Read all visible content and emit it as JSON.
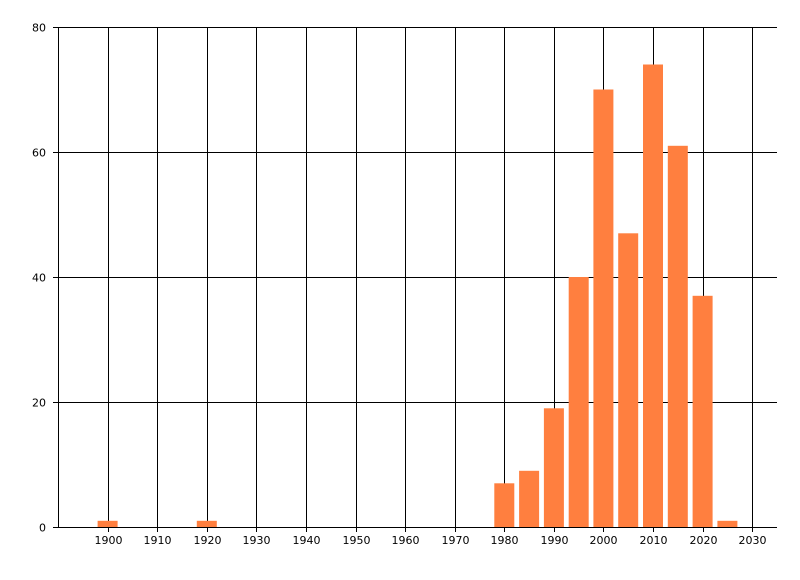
{
  "chart_data": {
    "type": "bar",
    "title": "",
    "xlabel": "",
    "ylabel": "",
    "x": [
      1900,
      1920,
      1980,
      1985,
      1990,
      1995,
      2000,
      2005,
      2010,
      2015,
      2020,
      2025
    ],
    "values": [
      1,
      1,
      7,
      9,
      19,
      40,
      70,
      47,
      74,
      61,
      37,
      1
    ],
    "xlim": [
      1890,
      2035
    ],
    "ylim": [
      0,
      80
    ],
    "xticks": [
      1900,
      1910,
      1920,
      1930,
      1940,
      1950,
      1960,
      1970,
      1980,
      1990,
      2000,
      2010,
      2020,
      2030
    ],
    "xtick_labels": [
      "1900",
      "1910",
      "1920",
      "1930",
      "1940",
      "1950",
      "1960",
      "1970",
      "1980",
      "1990",
      "2000",
      "2010",
      "2020",
      "2030"
    ],
    "yticks": [
      0,
      20,
      40,
      60,
      80
    ],
    "ytick_labels": [
      "0",
      "20",
      "40",
      "60",
      "80"
    ],
    "bar_color": "#ff7f3f",
    "gridline_color": "#000000",
    "grid": true,
    "legend": "none"
  }
}
